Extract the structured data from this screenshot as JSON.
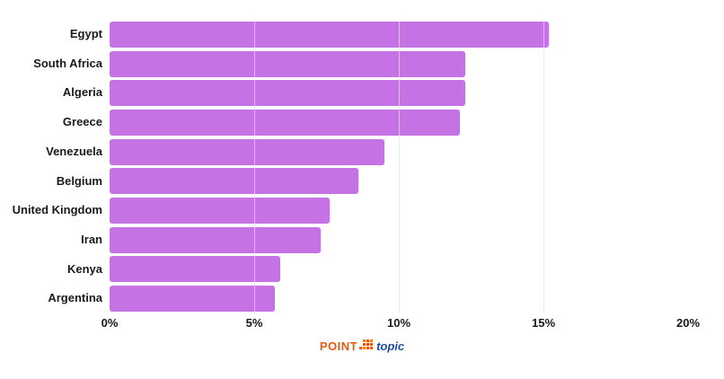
{
  "chart_data": {
    "type": "bar",
    "orientation": "horizontal",
    "title": "",
    "xlabel": "",
    "ylabel": "",
    "categories": [
      "Egypt",
      "South Africa",
      "Algeria",
      "Greece",
      "Venezuela",
      "Belgium",
      "United Kingdom",
      "Iran",
      "Kenya",
      "Argentina"
    ],
    "values": [
      15.2,
      12.3,
      12.3,
      12.1,
      9.5,
      8.6,
      7.6,
      7.3,
      5.9,
      5.7
    ],
    "value_suffix": "%",
    "xlim": [
      0,
      20
    ],
    "x_ticks": [
      {
        "label": "0%",
        "value": 0
      },
      {
        "label": "5%",
        "value": 5
      },
      {
        "label": "10%",
        "value": 10
      },
      {
        "label": "15%",
        "value": 15
      },
      {
        "label": "20%",
        "value": 20
      }
    ],
    "gridline_values": [
      5,
      10,
      15
    ],
    "grid": true,
    "legend": false,
    "bar_color": "#c572e4",
    "gridline_color": "#d8d8d8",
    "label_color": "#1a1a1a"
  },
  "footer": {
    "logo": {
      "point_text": "POINT",
      "topic_text": "topic",
      "point_color": "#e8590f",
      "topic_color": "#1d4f9e"
    }
  }
}
